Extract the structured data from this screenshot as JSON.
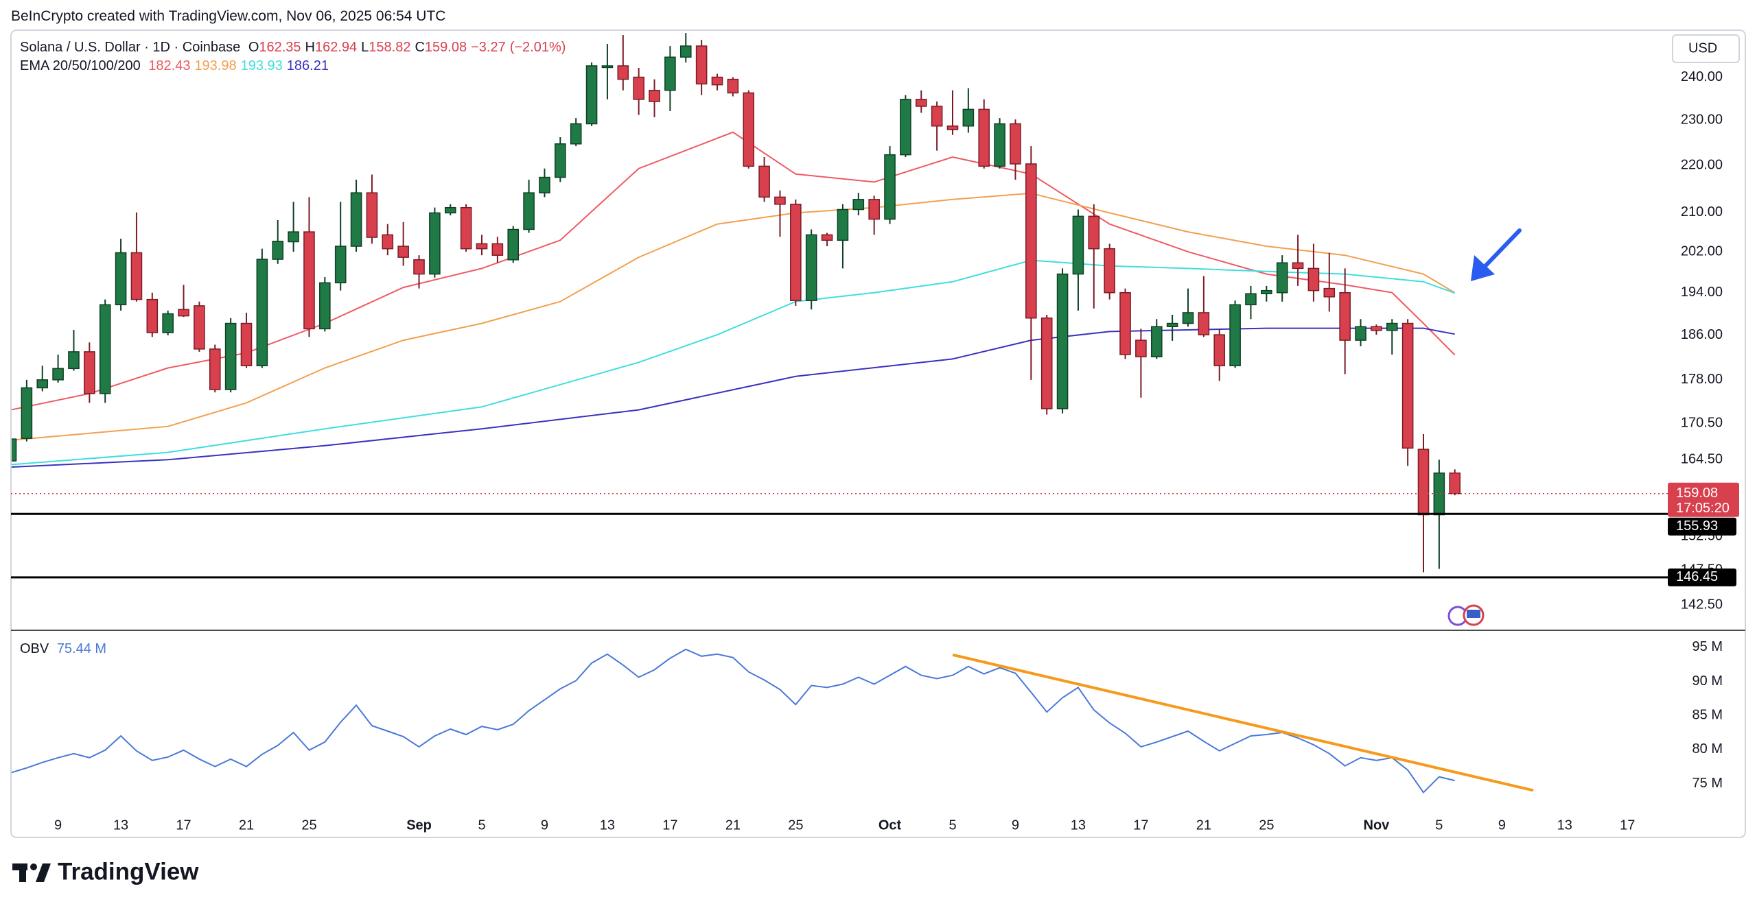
{
  "header": {
    "credit": "BeInCrypto created with TradingView.com, Nov 06, 2025 06:54 UTC"
  },
  "chart_data": {
    "type": "candlestick",
    "title": "Solana / U.S. Dollar · 1D · Coinbase",
    "currency": "USD",
    "ohlc_prefixes": [
      "O",
      "H",
      "L",
      "C"
    ],
    "change": {
      "value": -3.27,
      "label": "−3.27"
    },
    "change_pct": {
      "value": -2.01,
      "label": "(−2.01%)"
    },
    "up_color": "#1f7a45",
    "down_color": "#d8404d",
    "up_border": "#0f3f24",
    "down_border": "#7a1c26",
    "log_scale": true,
    "ylim": [
      139.0,
      251.4
    ],
    "yticks": [
      {
        "value": 240,
        "label": "240.00"
      },
      {
        "value": 230,
        "label": "230.00"
      },
      {
        "value": 220,
        "label": "220.00"
      },
      {
        "value": 210,
        "label": "210.00"
      },
      {
        "value": 202,
        "label": "202.00"
      },
      {
        "value": 194,
        "label": "194.00"
      },
      {
        "value": 186,
        "label": "186.00"
      },
      {
        "value": 178,
        "label": "178.00"
      },
      {
        "value": 170.5,
        "label": "170.50"
      },
      {
        "value": 164.5,
        "label": "164.50"
      },
      {
        "value": 152.5,
        "label": "152.50"
      },
      {
        "value": 147.5,
        "label": "147.50"
      },
      {
        "value": 142.5,
        "label": "142.50"
      }
    ],
    "xlim": [
      "08-06",
      "11-19"
    ],
    "xticks": [
      {
        "value": "08-09",
        "label": "9"
      },
      {
        "value": "08-13",
        "label": "13"
      },
      {
        "value": "08-17",
        "label": "17"
      },
      {
        "value": "08-21",
        "label": "21"
      },
      {
        "value": "08-25",
        "label": "25"
      },
      {
        "value": "09-01",
        "label": "Sep"
      },
      {
        "value": "09-05",
        "label": "5"
      },
      {
        "value": "09-09",
        "label": "9"
      },
      {
        "value": "09-13",
        "label": "13"
      },
      {
        "value": "09-17",
        "label": "17"
      },
      {
        "value": "09-21",
        "label": "21"
      },
      {
        "value": "09-25",
        "label": "25"
      },
      {
        "value": "10-01",
        "label": "Oct"
      },
      {
        "value": "10-05",
        "label": "5"
      },
      {
        "value": "10-09",
        "label": "9"
      },
      {
        "value": "10-13",
        "label": "13"
      },
      {
        "value": "10-17",
        "label": "17"
      },
      {
        "value": "10-21",
        "label": "21"
      },
      {
        "value": "10-25",
        "label": "25"
      },
      {
        "value": "11-01",
        "label": "Nov"
      },
      {
        "value": "11-05",
        "label": "5"
      },
      {
        "value": "11-09",
        "label": "9"
      },
      {
        "value": "11-13",
        "label": "13"
      },
      {
        "value": "11-17",
        "label": "17"
      }
    ],
    "x": [
      "08-06",
      "08-07",
      "08-08",
      "08-09",
      "08-10",
      "08-11",
      "08-12",
      "08-13",
      "08-14",
      "08-15",
      "08-16",
      "08-17",
      "08-18",
      "08-19",
      "08-20",
      "08-21",
      "08-22",
      "08-23",
      "08-24",
      "08-25",
      "08-26",
      "08-27",
      "08-28",
      "08-29",
      "08-30",
      "08-31",
      "09-01",
      "09-02",
      "09-03",
      "09-04",
      "09-05",
      "09-06",
      "09-07",
      "09-08",
      "09-09",
      "09-10",
      "09-11",
      "09-12",
      "09-13",
      "09-14",
      "09-15",
      "09-16",
      "09-17",
      "09-18",
      "09-19",
      "09-20",
      "09-21",
      "09-22",
      "09-23",
      "09-24",
      "09-25",
      "09-26",
      "09-27",
      "09-28",
      "09-29",
      "09-30",
      "10-01",
      "10-02",
      "10-03",
      "10-04",
      "10-05",
      "10-06",
      "10-07",
      "10-08",
      "10-09",
      "10-10",
      "10-11",
      "10-12",
      "10-13",
      "10-14",
      "10-15",
      "10-16",
      "10-17",
      "10-18",
      "10-19",
      "10-20",
      "10-21",
      "10-22",
      "10-23",
      "10-24",
      "10-25",
      "10-26",
      "10-27",
      "10-28",
      "10-29",
      "10-30",
      "10-31",
      "11-01",
      "11-02",
      "11-03",
      "11-04",
      "11-05",
      "11-06"
    ],
    "open": [
      164.3,
      168.0,
      176.6,
      178.0,
      180.0,
      183.0,
      175.6,
      191.7,
      201.8,
      192.7,
      186.5,
      190.8,
      191.5,
      183.5,
      176.3,
      188.2,
      180.5,
      200.5,
      204.0,
      206.0,
      187.2,
      195.9,
      203.1,
      214.1,
      205.4,
      203.1,
      200.4,
      197.6,
      209.9,
      211.0,
      203.6,
      203.6,
      200.4,
      206.5,
      214.1,
      217.4,
      224.7,
      229.2,
      242.3,
      242.7,
      240.0,
      236.9,
      236.9,
      244.8,
      247.5,
      240.0,
      239.5,
      236.3,
      219.8,
      213.2,
      211.7,
      192.5,
      205.4,
      204.3,
      210.6,
      212.7,
      208.6,
      222.3,
      234.8,
      233.2,
      228.7,
      228.7,
      232.5,
      219.8,
      229.2,
      220.3,
      189.2,
      173.0,
      197.6,
      209.2,
      202.6,
      194.0,
      185.1,
      182.1,
      187.6,
      188.2,
      190.2,
      186.1,
      180.5,
      191.7,
      193.8,
      194.0,
      199.8,
      198.7,
      194.8,
      194.0,
      185.1,
      187.6,
      186.9,
      188.2,
      166.2,
      155.8,
      162.35
    ],
    "high": [
      168.5,
      178.0,
      180.5,
      182.5,
      187.0,
      184.7,
      192.7,
      204.6,
      210.0,
      194.0,
      190.6,
      195.5,
      192.3,
      184.3,
      189.2,
      190.2,
      202.6,
      208.4,
      212.2,
      213.2,
      197.0,
      212.2,
      216.9,
      218.0,
      207.6,
      208.0,
      201.3,
      211.0,
      211.7,
      211.7,
      205.4,
      205.0,
      207.2,
      216.9,
      219.3,
      226.2,
      230.5,
      243.5,
      248.0,
      250.2,
      242.2,
      239.5,
      247.5,
      250.7,
      249.0,
      240.8,
      240.0,
      236.9,
      221.8,
      214.6,
      212.7,
      206.5,
      205.8,
      211.7,
      214.1,
      213.5,
      224.2,
      235.8,
      236.9,
      234.3,
      236.9,
      237.4,
      234.8,
      230.5,
      230.2,
      224.2,
      189.8,
      198.7,
      210.6,
      211.7,
      203.6,
      194.8,
      187.2,
      189.0,
      189.8,
      194.8,
      197.2,
      187.2,
      192.5,
      195.3,
      195.3,
      201.3,
      205.4,
      203.6,
      201.8,
      198.7,
      189.0,
      188.0,
      189.0,
      189.0,
      168.7,
      164.5,
      162.94
    ],
    "low": [
      163.8,
      167.5,
      176.0,
      177.5,
      179.6,
      174.0,
      174.0,
      190.6,
      192.3,
      185.7,
      186.0,
      189.4,
      183.0,
      175.8,
      175.8,
      180.1,
      180.1,
      199.6,
      202.0,
      185.7,
      186.7,
      194.4,
      202.0,
      203.6,
      201.3,
      199.2,
      194.8,
      196.9,
      209.4,
      202.0,
      201.3,
      199.8,
      199.8,
      205.8,
      213.2,
      216.4,
      224.2,
      228.7,
      234.8,
      236.9,
      231.2,
      230.7,
      232.1,
      243.5,
      235.8,
      236.9,
      235.5,
      219.3,
      212.2,
      205.0,
      191.5,
      190.8,
      203.1,
      198.7,
      209.4,
      205.4,
      207.6,
      221.8,
      231.7,
      223.2,
      226.7,
      227.2,
      219.3,
      219.3,
      216.9,
      178.0,
      172.0,
      172.2,
      190.6,
      191.0,
      192.7,
      181.7,
      174.9,
      181.7,
      185.0,
      187.6,
      185.7,
      177.8,
      180.1,
      189.0,
      192.3,
      192.3,
      195.3,
      192.3,
      190.4,
      179.0,
      184.0,
      186.1,
      182.5,
      163.5,
      147.2,
      147.7,
      158.82
    ],
    "close": [
      167.9,
      176.6,
      178.0,
      180.0,
      183.0,
      175.6,
      191.7,
      201.8,
      192.7,
      186.5,
      190.0,
      189.6,
      183.5,
      176.3,
      188.2,
      180.5,
      200.5,
      204.1,
      206.0,
      187.2,
      195.9,
      203.1,
      214.1,
      204.9,
      202.6,
      200.9,
      197.6,
      209.9,
      211.0,
      202.6,
      202.6,
      201.3,
      206.5,
      214.1,
      217.4,
      224.7,
      229.2,
      242.7,
      242.7,
      239.5,
      234.8,
      234.3,
      244.8,
      247.5,
      238.4,
      238.2,
      236.3,
      219.8,
      213.2,
      211.7,
      192.5,
      205.4,
      204.3,
      210.6,
      212.7,
      208.6,
      222.3,
      234.8,
      233.2,
      228.7,
      227.9,
      232.5,
      219.8,
      229.2,
      220.3,
      189.2,
      173.0,
      197.6,
      209.2,
      202.6,
      194.0,
      182.5,
      182.1,
      187.6,
      188.2,
      190.2,
      186.1,
      180.5,
      191.7,
      193.8,
      194.4,
      199.8,
      198.7,
      194.4,
      193.2,
      185.1,
      187.6,
      186.9,
      188.2,
      166.4,
      155.8,
      162.35,
      159.08
    ],
    "indicator_name": "EMA 20/50/100/200",
    "ema": [
      {
        "color": "#ef5a64",
        "x": [
          "08-06",
          "08-11",
          "08-16",
          "08-21",
          "08-26",
          "08-31",
          "09-05",
          "09-10",
          "09-15",
          "09-21",
          "09-25",
          "09-30",
          "10-05",
          "10-10",
          "10-15",
          "10-20",
          "10-25",
          "10-30",
          "11-02",
          "11-04",
          "11-06"
        ],
        "values": [
          172.8,
          175.6,
          180.1,
          182.8,
          188.2,
          195.0,
          198.7,
          204.3,
          219.3,
          227.3,
          218.1,
          216.4,
          221.8,
          218.1,
          207.6,
          202.0,
          197.6,
          195.5,
          194.0,
          188.2,
          182.43
        ]
      },
      {
        "color": "#f2a04e",
        "x": [
          "08-06",
          "08-16",
          "08-21",
          "08-26",
          "08-31",
          "09-05",
          "09-10",
          "09-15",
          "09-20",
          "09-25",
          "09-30",
          "10-05",
          "10-10",
          "10-15",
          "10-20",
          "10-25",
          "10-30",
          "11-04",
          "11-06"
        ],
        "values": [
          167.7,
          170.0,
          174.0,
          180.1,
          185.1,
          188.2,
          192.3,
          200.9,
          207.6,
          209.9,
          211.0,
          212.7,
          214.0,
          209.9,
          206.0,
          203.1,
          201.3,
          197.6,
          193.98
        ]
      },
      {
        "color": "#3fdede",
        "x": [
          "08-06",
          "08-16",
          "08-26",
          "09-05",
          "09-15",
          "09-20",
          "09-25",
          "09-30",
          "10-05",
          "10-10",
          "10-15",
          "10-20",
          "10-25",
          "10-30",
          "11-04",
          "11-06"
        ],
        "values": [
          163.7,
          165.7,
          169.6,
          173.3,
          181.1,
          186.1,
          192.3,
          194.0,
          196.1,
          200.3,
          199.2,
          198.7,
          198.1,
          197.6,
          196.1,
          193.93
        ]
      },
      {
        "color": "#3a30c0",
        "x": [
          "08-06",
          "08-16",
          "08-26",
          "09-05",
          "09-15",
          "09-25",
          "10-05",
          "10-10",
          "10-15",
          "10-25",
          "11-04",
          "11-06"
        ],
        "values": [
          163.3,
          164.5,
          166.8,
          169.6,
          172.8,
          178.6,
          181.7,
          185.1,
          186.7,
          187.3,
          187.3,
          186.21
        ]
      }
    ],
    "hlines": [
      {
        "value": 155.93,
        "color": "#000000"
      },
      {
        "value": 146.45,
        "color": "#000000"
      }
    ],
    "last_price_color": "#d8404d",
    "countdown": "17:05:20",
    "obv": {
      "type": "line",
      "name": "OBV",
      "color": "#4a78d8",
      "last_label": "75.44 M",
      "values": [
        76.6,
        77.3,
        78.1,
        78.8,
        79.4,
        78.8,
        79.9,
        82.0,
        79.8,
        78.4,
        78.9,
        79.9,
        78.6,
        77.5,
        78.6,
        77.5,
        79.3,
        80.6,
        82.5,
        79.9,
        81.1,
        84.0,
        86.5,
        83.5,
        82.7,
        81.9,
        80.4,
        82.0,
        83.0,
        82.2,
        83.4,
        82.9,
        83.7,
        85.7,
        87.3,
        88.9,
        90.1,
        92.7,
        94.0,
        92.4,
        90.6,
        91.7,
        93.4,
        94.7,
        93.7,
        94.0,
        93.5,
        91.4,
        90.2,
        88.8,
        86.6,
        89.4,
        89.1,
        89.6,
        90.6,
        89.6,
        90.9,
        92.2,
        90.9,
        90.4,
        90.9,
        92.2,
        91.1,
        92.0,
        91.2,
        88.4,
        85.5,
        87.6,
        89.1,
        85.8,
        83.9,
        82.4,
        80.4,
        81.1,
        81.9,
        82.7,
        81.2,
        79.8,
        80.9,
        82.0,
        82.2,
        82.5,
        81.7,
        80.7,
        79.4,
        77.6,
        78.8,
        78.4,
        78.8,
        77.0,
        73.7,
        76.0,
        75.44
      ],
      "ylim": [
        67.1,
        97.5
      ],
      "yticks": [
        {
          "value": 95,
          "label": "95 M"
        },
        {
          "value": 90,
          "label": "90 M"
        },
        {
          "value": 85,
          "label": "85 M"
        },
        {
          "value": 80,
          "label": "80 M"
        },
        {
          "value": 75,
          "label": "75 M"
        }
      ],
      "trendline": {
        "color": "#f59a1b",
        "x": [
          "10-05",
          "11-11"
        ],
        "values": [
          93.9,
          74.0
        ]
      }
    }
  },
  "footer": {
    "brand": "TradingView"
  }
}
